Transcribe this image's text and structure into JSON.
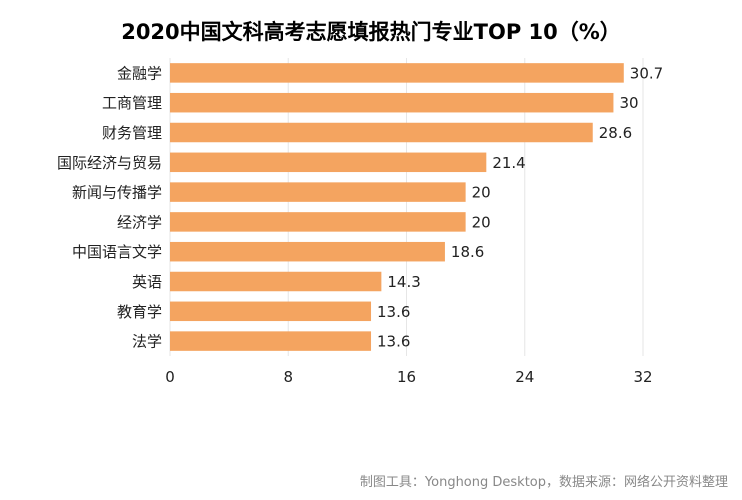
{
  "chart_data": {
    "type": "bar",
    "orientation": "horizontal",
    "title": "2020中国文科高考志愿填报热门专业TOP 10（%）",
    "categories": [
      "金融学",
      "工商管理",
      "财务管理",
      "国际经济与贸易",
      "新闻与传播学",
      "经济学",
      "中国语言文学",
      "英语",
      "教育学",
      "法学"
    ],
    "values": [
      30.7,
      30,
      28.6,
      21.4,
      20,
      20,
      18.6,
      14.3,
      13.6,
      13.6
    ],
    "value_labels": [
      "30.7",
      "30",
      "28.6",
      "21.4",
      "20",
      "20",
      "18.6",
      "14.3",
      "13.6",
      "13.6"
    ],
    "xlim": [
      0,
      32
    ],
    "xticks": [
      "0",
      "8",
      "16",
      "24",
      "32"
    ],
    "xtick_values": [
      0,
      8,
      16,
      24,
      32
    ],
    "grid": "vertical",
    "bar_color": "#F4A460"
  },
  "footer": {
    "source": "制图工具：Yonghong Desktop，数据来源：网络公开资料整理"
  }
}
